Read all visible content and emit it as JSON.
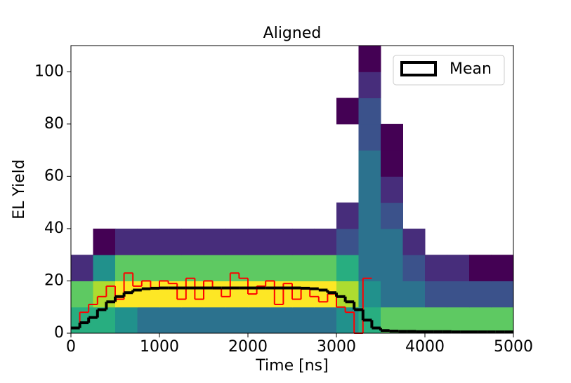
{
  "chart_data": {
    "type": "hist2d",
    "title": "Aligned",
    "xlabel": "Time [ns]",
    "ylabel": "EL Yield",
    "xlim": [
      0,
      5000
    ],
    "ylim": [
      0,
      110
    ],
    "xticks": [
      0,
      1000,
      2000,
      3000,
      4000,
      5000
    ],
    "yticks": [
      0,
      20,
      40,
      60,
      80,
      100
    ],
    "xbins": [
      0,
      250,
      500,
      750,
      1000,
      1250,
      1500,
      1750,
      2000,
      2250,
      2500,
      2750,
      3000,
      3250,
      3500,
      3750,
      4000,
      4250,
      4500,
      4750,
      5000
    ],
    "ybins": [
      0,
      10,
      20,
      30,
      40,
      50,
      60,
      70,
      80,
      90,
      100,
      110
    ],
    "colormap": [
      "#440154",
      "#472d7b",
      "#3b528b",
      "#2c728e",
      "#21918c",
      "#28ae80",
      "#5ec962",
      "#addc30",
      "#fde725"
    ],
    "counts": [
      [
        6,
        6,
        5,
        4,
        4,
        4,
        4,
        4,
        4,
        4,
        4,
        4,
        5,
        6,
        7,
        7,
        7,
        7,
        7,
        7
      ],
      [
        7,
        8,
        9,
        9,
        9,
        9,
        9,
        9,
        9,
        9,
        9,
        9,
        8,
        5,
        4,
        4,
        3,
        3,
        3,
        3
      ],
      [
        2,
        5,
        7,
        7,
        7,
        7,
        7,
        7,
        7,
        7,
        7,
        7,
        6,
        4,
        4,
        3,
        2,
        2,
        1,
        1
      ],
      [
        null,
        1,
        2,
        2,
        2,
        2,
        2,
        2,
        2,
        2,
        2,
        2,
        3,
        4,
        4,
        2,
        null,
        null,
        null,
        null
      ],
      [
        null,
        null,
        null,
        null,
        null,
        null,
        null,
        null,
        null,
        null,
        null,
        null,
        2,
        4,
        3,
        null,
        null,
        null,
        null,
        null
      ],
      [
        null,
        null,
        null,
        null,
        null,
        null,
        null,
        null,
        null,
        null,
        null,
        null,
        null,
        4,
        2,
        null,
        null,
        null,
        null,
        null
      ],
      [
        null,
        null,
        null,
        null,
        null,
        null,
        null,
        null,
        null,
        null,
        null,
        null,
        null,
        4,
        1,
        null,
        null,
        null,
        null,
        null
      ],
      [
        null,
        null,
        null,
        null,
        null,
        null,
        null,
        null,
        null,
        null,
        null,
        null,
        null,
        3,
        1,
        null,
        null,
        null,
        null,
        null
      ],
      [
        null,
        null,
        null,
        null,
        null,
        null,
        null,
        null,
        null,
        null,
        null,
        null,
        1,
        3,
        null,
        null,
        null,
        null,
        null,
        null
      ],
      [
        null,
        null,
        null,
        null,
        null,
        null,
        null,
        null,
        null,
        null,
        null,
        null,
        null,
        2,
        null,
        null,
        null,
        null,
        null,
        null
      ],
      [
        null,
        null,
        null,
        null,
        null,
        null,
        null,
        null,
        null,
        null,
        null,
        null,
        null,
        1,
        null,
        null,
        null,
        null,
        null,
        null
      ]
    ],
    "step_width": 100,
    "series": [
      {
        "name": "Mean",
        "color": "#000000",
        "legend": true,
        "x": [
          0,
          100,
          200,
          300,
          400,
          500,
          600,
          700,
          800,
          900,
          1000,
          1100,
          1200,
          1300,
          1400,
          1500,
          1600,
          1700,
          1800,
          1900,
          2000,
          2100,
          2200,
          2300,
          2400,
          2500,
          2600,
          2700,
          2800,
          2900,
          3000,
          3100,
          3200,
          3300,
          3400,
          3500,
          3600,
          3700,
          3800,
          3900,
          4000,
          4100,
          4200,
          4300,
          4400,
          4500,
          4600,
          4700,
          4800,
          4900
        ],
        "values": [
          2,
          4,
          6,
          9,
          12,
          14,
          15.5,
          16.5,
          17,
          17.2,
          17.3,
          17.3,
          17.3,
          17.3,
          17.3,
          17.3,
          17.3,
          17.3,
          17.3,
          17.3,
          17.3,
          17.3,
          17.3,
          17.3,
          17.3,
          17.3,
          17.2,
          17,
          16.5,
          15.5,
          14,
          12,
          9,
          5,
          2,
          1,
          0.8,
          0.7,
          0.7,
          0.6,
          0.6,
          0.6,
          0.6,
          0.5,
          0.5,
          0.5,
          0.5,
          0.5,
          0.5,
          0.5
        ]
      },
      {
        "name": "",
        "color": "#ff0000",
        "legend": false,
        "x": [
          0,
          100,
          200,
          300,
          400,
          500,
          600,
          700,
          800,
          900,
          1000,
          1100,
          1200,
          1300,
          1400,
          1500,
          1600,
          1700,
          1800,
          1900,
          2000,
          2100,
          2200,
          2300,
          2400,
          2500,
          2600,
          2700,
          2800,
          2900,
          3000,
          3100,
          3200,
          3300
        ],
        "values": [
          2,
          8,
          11,
          14,
          18,
          13,
          23,
          18,
          20,
          17,
          20,
          19,
          13,
          21,
          13,
          20,
          17,
          14,
          23,
          21,
          15,
          18,
          20,
          11,
          19,
          13,
          17,
          14,
          12,
          15,
          10,
          8,
          0,
          21
        ]
      }
    ]
  }
}
